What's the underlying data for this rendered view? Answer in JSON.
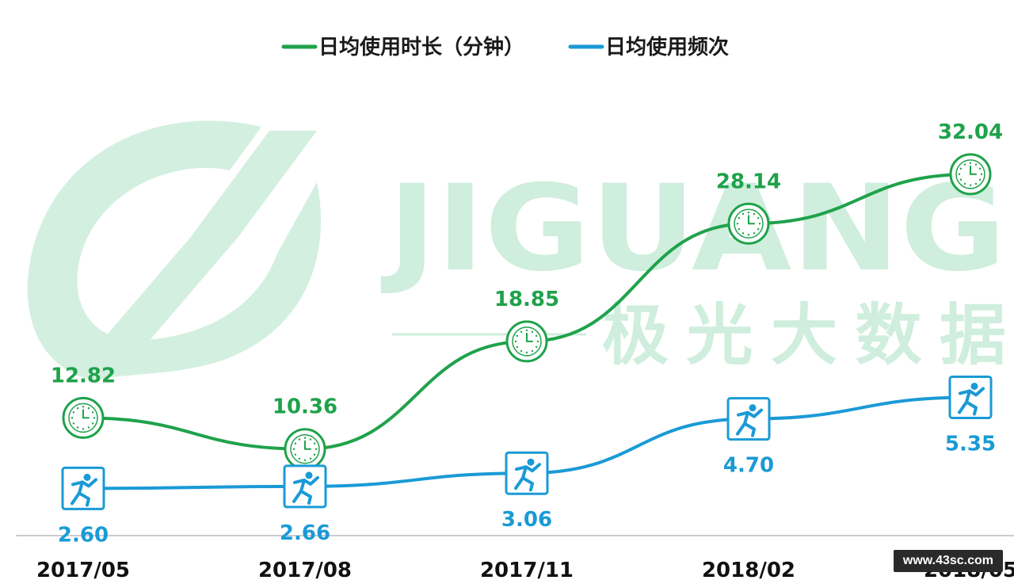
{
  "legend": {
    "series_1": "日均使用时长（分钟）",
    "series_2": "日均使用频次"
  },
  "watermark": {
    "logo_text": "JIGUANG",
    "cn_text": "极光大数据",
    "site_badge": "www.43sc.com"
  },
  "colors": {
    "duration": "#1fa24b",
    "frequency": "#1a9ad6",
    "watermark": "#cfeedd",
    "axis": "#bbbbbb"
  },
  "chart_data": {
    "type": "line",
    "categories": [
      "2017/05",
      "2017/08",
      "2017/11",
      "2018/02",
      "2018/05"
    ],
    "series": [
      {
        "name": "日均使用时长（分钟）",
        "values": [
          12.82,
          10.36,
          18.85,
          28.14,
          32.04
        ],
        "labels": [
          "12.82",
          "10.36",
          "18.85",
          "28.14",
          "32.04"
        ],
        "marker": "clock-icon",
        "label_position": "above"
      },
      {
        "name": "日均使用频次",
        "values": [
          2.6,
          2.66,
          3.06,
          4.7,
          5.35
        ],
        "labels": [
          "2.60",
          "2.66",
          "3.06",
          "4.70",
          "5.35"
        ],
        "marker": "runner-icon",
        "label_position": "below"
      }
    ],
    "grid": false,
    "legend_position": "top-center"
  }
}
